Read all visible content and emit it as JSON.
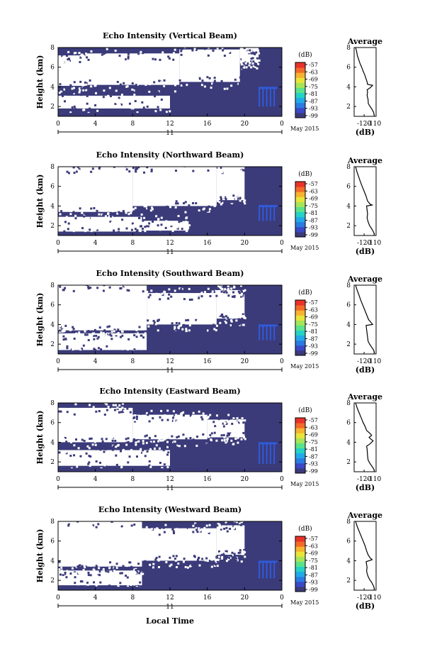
{
  "colors": {
    "background": "#ffffff",
    "no_data": "#ffffff",
    "weak_echo": "#3b3b7a",
    "strong_echo": "#2f5bd8",
    "colorbar": [
      "#3b3b7a",
      "#3a49c4",
      "#2b7be0",
      "#22a9e8",
      "#25d2c4",
      "#5ce28a",
      "#a6e55a",
      "#e9e43a",
      "#f7b22f",
      "#f26a2a",
      "#e8332a"
    ]
  },
  "shared": {
    "ylabel": "Height (km)",
    "xlabel": "Local Time",
    "date_label": "May 2015",
    "day_label": "11",
    "x_tick_labels": [
      "0",
      "4",
      "8",
      "12",
      "16",
      "20",
      "0"
    ],
    "y_tick_labels": [
      "2",
      "4",
      "6",
      "8"
    ],
    "colorbar_unit": "(dB)",
    "colorbar_tick_labels": [
      "-57",
      "-63",
      "-69",
      "-75",
      "-81",
      "-87",
      "-93",
      "-99"
    ],
    "avg_title": "Average",
    "avg_x_tick_labels": [
      "-120",
      "-110"
    ],
    "avg_y_tick_labels": [
      "2",
      "4",
      "6",
      "8"
    ],
    "avg_xlabel": "(dB)"
  },
  "chart_data": [
    {
      "type": "heatmap",
      "title": "Echo Intensity (Vertical Beam)",
      "xlabel": "",
      "ylabel": "Height (km)",
      "xlim": [
        0,
        24
      ],
      "ylim": [
        1,
        8
      ],
      "x_unit": "local time (h)",
      "y_unit": "km",
      "colorbar_range_db": [
        -99,
        -57
      ],
      "no_data_regions": [
        {
          "t": [
            0,
            3
          ],
          "h": [
            4.1,
            7.2
          ]
        },
        {
          "t": [
            3,
            13
          ],
          "h": [
            4.2,
            7.4
          ]
        },
        {
          "t": [
            13,
            19.5
          ],
          "h": [
            4.5,
            7.8
          ]
        },
        {
          "t": [
            0,
            12
          ],
          "h": [
            1.8,
            3.1
          ]
        },
        {
          "t": [
            19.5,
            21.5
          ],
          "h": [
            6.5,
            8
          ]
        }
      ],
      "enhanced_echo": {
        "t": [
          21.5,
          23.5
        ],
        "h": [
          2.0,
          4.0
        ]
      },
      "average_profile": {
        "type": "line",
        "title": "Average",
        "xlabel": "(dB)",
        "xlim": [
          -130,
          -108
        ],
        "ylim": [
          1,
          8
        ],
        "x": [
          -128.5,
          -127.5,
          -126.8,
          -125.5,
          -124.2,
          -122.5,
          -121.0,
          -119.3,
          -118.0,
          -117.0,
          -116.5,
          -111.5,
          -112.5,
          -114.0,
          -117.0,
          -116.5,
          -117.0,
          -116.0,
          -115.8,
          -114.0,
          -112.0,
          -110.5,
          -109.8
        ],
        "y": [
          8.0,
          7.6,
          7.2,
          6.8,
          6.4,
          6.0,
          5.6,
          5.2,
          4.8,
          4.5,
          4.25,
          4.15,
          4.05,
          3.9,
          3.7,
          3.5,
          3.1,
          2.7,
          2.3,
          2.0,
          1.7,
          1.4,
          1.1
        ]
      }
    },
    {
      "type": "heatmap",
      "title": "Echo Intensity (Northward Beam)",
      "xlabel": "",
      "ylabel": "Height (km)",
      "xlim": [
        0,
        24
      ],
      "ylim": [
        1,
        8
      ],
      "x_unit": "local time (h)",
      "y_unit": "km",
      "colorbar_range_db": [
        -99,
        -57
      ],
      "no_data_regions": [
        {
          "t": [
            0,
            8
          ],
          "h": [
            3.4,
            8
          ]
        },
        {
          "t": [
            8,
            17
          ],
          "h": [
            4.0,
            8
          ]
        },
        {
          "t": [
            17,
            20
          ],
          "h": [
            4.6,
            8
          ]
        },
        {
          "t": [
            0,
            9
          ],
          "h": [
            1.4,
            2.9
          ]
        },
        {
          "t": [
            8,
            14
          ],
          "h": [
            1.5,
            2.5
          ]
        }
      ],
      "enhanced_echo": {
        "t": [
          21.5,
          23.5
        ],
        "h": [
          2.5,
          4.1
        ]
      },
      "average_profile": {
        "type": "line",
        "title": "Average",
        "xlabel": "(dB)",
        "xlim": [
          -130,
          -108
        ],
        "ylim": [
          1,
          8
        ],
        "x": [
          -128.5,
          -127.2,
          -125.5,
          -123.8,
          -122.0,
          -120.0,
          -118.0,
          -116.5,
          -114.0,
          -112.0,
          -117.5,
          -117.0,
          -116.5,
          -117.0,
          -116.0,
          -114.5,
          -112.5,
          -110.8,
          -109.5
        ],
        "y": [
          8.0,
          7.5,
          7.0,
          6.5,
          6.0,
          5.5,
          5.0,
          4.5,
          4.2,
          4.1,
          4.0,
          3.6,
          3.2,
          2.8,
          2.4,
          2.0,
          1.7,
          1.4,
          1.1
        ]
      }
    },
    {
      "type": "heatmap",
      "title": "Echo Intensity (Southward Beam)",
      "xlabel": "",
      "ylabel": "Height (km)",
      "xlim": [
        0,
        24
      ],
      "ylim": [
        1,
        8
      ],
      "x_unit": "local time (h)",
      "y_unit": "km",
      "colorbar_range_db": [
        -99,
        -57
      ],
      "no_data_regions": [
        {
          "t": [
            0,
            9.5
          ],
          "h": [
            3.4,
            8
          ]
        },
        {
          "t": [
            9.5,
            17
          ],
          "h": [
            4.0,
            7.2
          ]
        },
        {
          "t": [
            17,
            20
          ],
          "h": [
            4.6,
            7.5
          ]
        },
        {
          "t": [
            0,
            9.5
          ],
          "h": [
            1.4,
            3.1
          ]
        }
      ],
      "enhanced_echo": {
        "t": [
          21.5,
          23.5
        ],
        "h": [
          2.4,
          4.0
        ]
      },
      "average_profile": {
        "type": "line",
        "title": "Average",
        "xlabel": "(dB)",
        "xlim": [
          -130,
          -108
        ],
        "ylim": [
          1,
          8
        ],
        "x": [
          -128.5,
          -127.0,
          -125.2,
          -123.5,
          -121.5,
          -119.5,
          -117.5,
          -115.5,
          -113.0,
          -111.5,
          -118.0,
          -117.5,
          -117.0,
          -116.5,
          -116.0,
          -114.5,
          -112.5,
          -110.5,
          -109.5
        ],
        "y": [
          8.0,
          7.5,
          7.0,
          6.5,
          6.0,
          5.5,
          5.0,
          4.5,
          4.2,
          4.0,
          3.9,
          3.5,
          3.1,
          2.7,
          2.3,
          2.0,
          1.7,
          1.4,
          1.1
        ]
      }
    },
    {
      "type": "heatmap",
      "title": "Echo Intensity (Eastward Beam)",
      "xlabel": "",
      "ylabel": "Height (km)",
      "xlim": [
        0,
        24
      ],
      "ylim": [
        1,
        8
      ],
      "x_unit": "local time (h)",
      "y_unit": "km",
      "colorbar_range_db": [
        -99,
        -57
      ],
      "no_data_regions": [
        {
          "t": [
            0,
            8
          ],
          "h": [
            4.0,
            7.5
          ]
        },
        {
          "t": [
            8,
            16
          ],
          "h": [
            4.3,
            6.8
          ]
        },
        {
          "t": [
            16,
            20
          ],
          "h": [
            4.5,
            6.3
          ]
        },
        {
          "t": [
            0,
            12
          ],
          "h": [
            1.6,
            3.2
          ]
        }
      ],
      "enhanced_echo": {
        "t": [
          21.5,
          23.5
        ],
        "h": [
          1.8,
          4.0
        ]
      },
      "average_profile": {
        "type": "line",
        "title": "Average",
        "xlabel": "(dB)",
        "xlim": [
          -130,
          -108
        ],
        "ylim": [
          1,
          8
        ],
        "x": [
          -128.5,
          -127.0,
          -125.0,
          -123.0,
          -121.0,
          -119.0,
          -117.5,
          -114.0,
          -112.5,
          -115.0,
          -113.0,
          -111.0,
          -112.5,
          -114.5,
          -117.5,
          -117.0,
          -116.8,
          -116.5,
          -116.0,
          -114.5,
          -112.5,
          -110.5,
          -109.5
        ],
        "y": [
          8.0,
          7.5,
          7.0,
          6.5,
          6.0,
          5.6,
          5.2,
          4.9,
          4.7,
          4.5,
          4.3,
          4.15,
          4.0,
          3.8,
          3.6,
          3.3,
          3.0,
          2.6,
          2.2,
          1.9,
          1.6,
          1.3,
          1.1
        ]
      }
    },
    {
      "type": "heatmap",
      "title": "Echo Intensity (Westward Beam)",
      "xlabel": "Local Time",
      "ylabel": "Height (km)",
      "xlim": [
        0,
        24
      ],
      "ylim": [
        1,
        8
      ],
      "x_unit": "local time (h)",
      "y_unit": "km",
      "colorbar_range_db": [
        -99,
        -57
      ],
      "no_data_regions": [
        {
          "t": [
            0,
            9
          ],
          "h": [
            3.4,
            8
          ]
        },
        {
          "t": [
            9,
            17
          ],
          "h": [
            4.0,
            7.3
          ]
        },
        {
          "t": [
            17,
            20
          ],
          "h": [
            4.6,
            7.6
          ]
        },
        {
          "t": [
            0,
            9
          ],
          "h": [
            1.5,
            3.0
          ]
        }
      ],
      "enhanced_echo": {
        "t": [
          21.5,
          23.5
        ],
        "h": [
          2.2,
          4.0
        ]
      },
      "average_profile": {
        "type": "line",
        "title": "Average",
        "xlabel": "(dB)",
        "xlim": [
          -130,
          -108
        ],
        "ylim": [
          1,
          8
        ],
        "x": [
          -128.5,
          -127.0,
          -125.0,
          -123.0,
          -121.0,
          -119.0,
          -117.5,
          -116.0,
          -114.0,
          -112.0,
          -118.0,
          -117.5,
          -117.0,
          -117.5,
          -117.0,
          -116.0,
          -114.5,
          -112.5,
          -110.5,
          -109.5
        ],
        "y": [
          8.0,
          7.5,
          7.0,
          6.5,
          6.0,
          5.5,
          5.0,
          4.6,
          4.3,
          4.1,
          3.9,
          3.6,
          3.3,
          3.0,
          2.7,
          2.4,
          2.1,
          1.8,
          1.4,
          1.1
        ]
      }
    }
  ]
}
